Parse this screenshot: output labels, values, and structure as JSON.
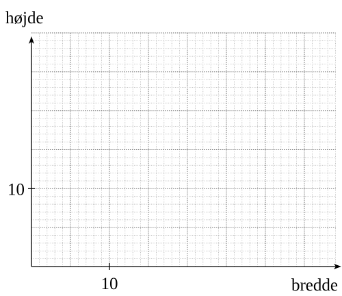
{
  "chart_data": {
    "type": "line",
    "xlabel": "bredde",
    "ylabel": "højde",
    "xlim": [
      0,
      39
    ],
    "ylim": [
      0,
      30
    ],
    "xticks": [
      10
    ],
    "yticks": [
      10
    ],
    "grid": true
  }
}
